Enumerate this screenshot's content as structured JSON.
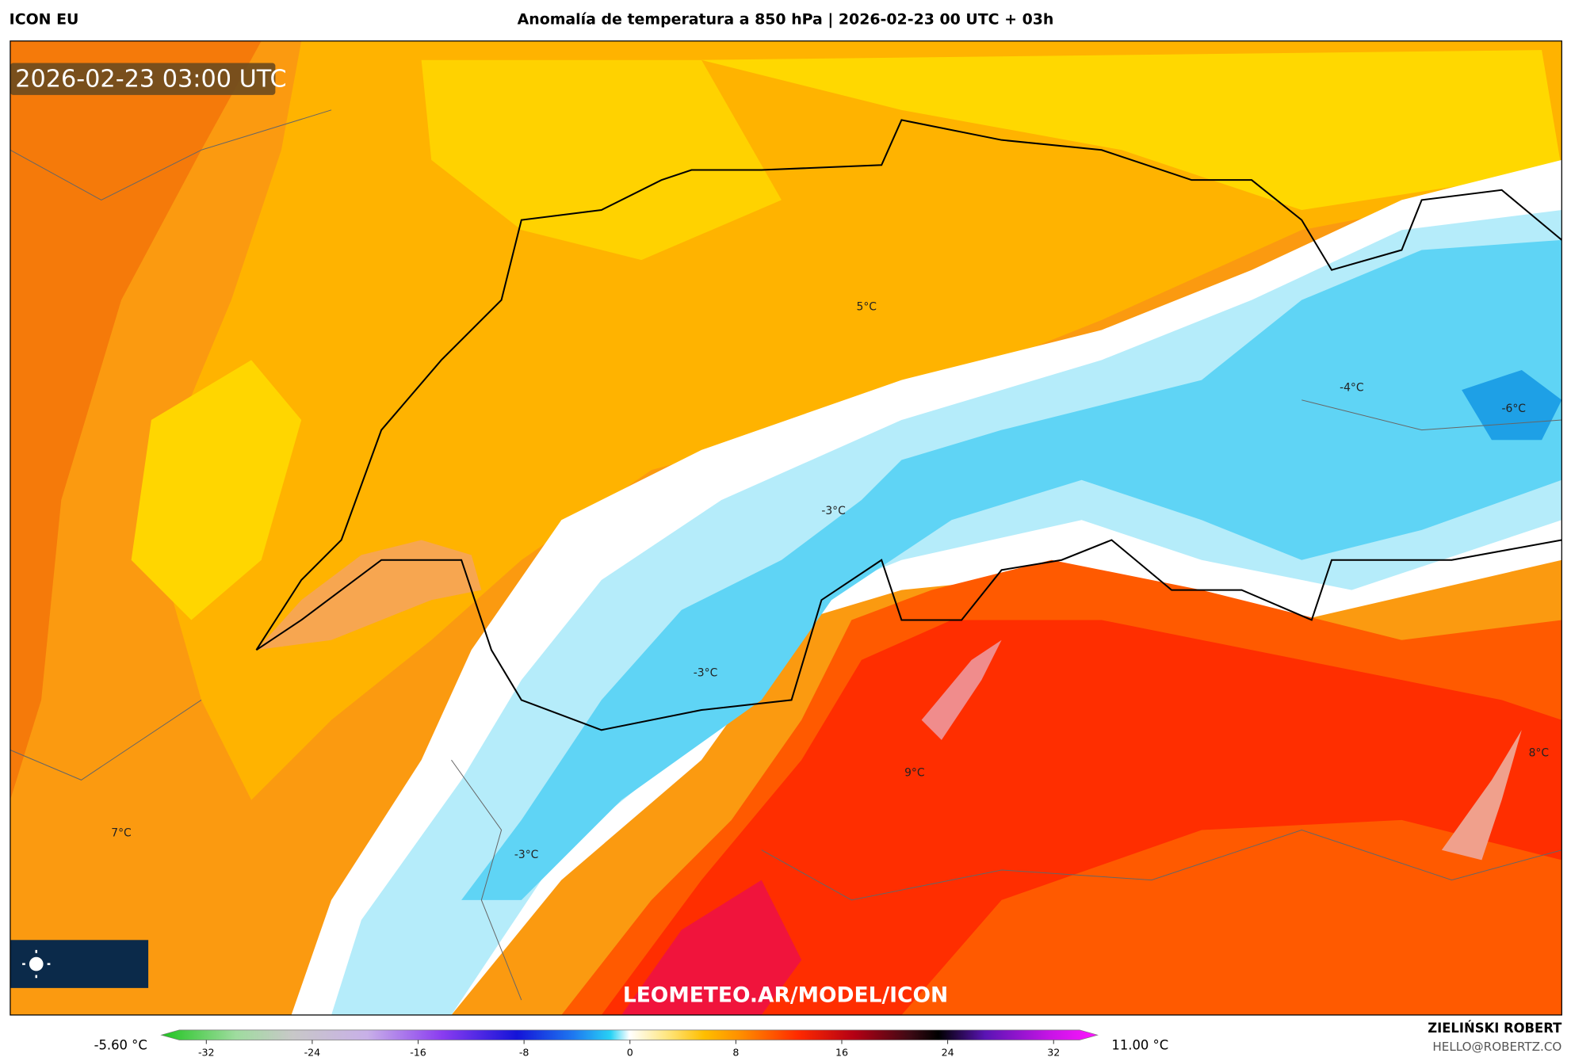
{
  "header": {
    "model": "ICON EU",
    "title": "Anomalía de temperatura a 850 hPa | 2026-02-23 00 UTC + 03h"
  },
  "timestamp": "2026-02-23 03:00 UTC",
  "map": {
    "labels": [
      "5°C",
      "-3°C",
      "-3°C",
      "-3°C",
      "9°C",
      "7°C",
      "-4°C",
      "-6°C",
      "8°C"
    ]
  },
  "watermark": "LEOMETEO.AR/MODEL/ICON",
  "colorbar": {
    "min_label": "-5.60 °C",
    "max_label": "11.00 °C",
    "ticks": [
      -32,
      -24,
      -16,
      -8,
      0,
      8,
      16,
      24,
      32
    ]
  },
  "footer": {
    "author": "ZIELIŃSKI ROBERT",
    "email": "HELLO@ROBERTZ.CO"
  }
}
